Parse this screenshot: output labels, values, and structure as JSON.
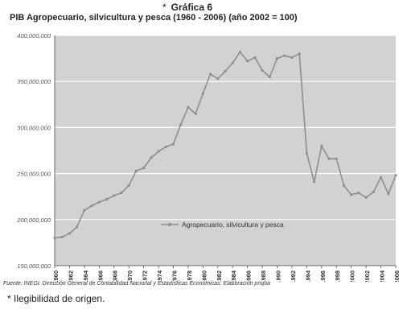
{
  "header": {
    "star": "*",
    "label": "Gráfica 6",
    "title": "PIB Agropecuario, silvicultura y pesca (1960 - 2006)  (año 2002 = 100)"
  },
  "footer": {
    "source": "Fuente: INEGI. Dirección General de Contabilidad Nacional y Estadísticas Económicas. Elaboración propia",
    "note": "* Ilegibilidad de origen."
  },
  "chart_data": {
    "type": "line",
    "x": [
      1960,
      1961,
      1962,
      1963,
      1964,
      1965,
      1966,
      1967,
      1968,
      1969,
      1970,
      1971,
      1972,
      1973,
      1974,
      1975,
      1976,
      1977,
      1978,
      1979,
      1980,
      1981,
      1982,
      1983,
      1984,
      1985,
      1986,
      1987,
      1988,
      1989,
      1990,
      1991,
      1992,
      1993,
      1994,
      1995,
      1996,
      1997,
      1998,
      1999,
      2000,
      2001,
      2002,
      2003,
      2004,
      2005,
      2006
    ],
    "series": [
      {
        "name": "Agropecuario, silvicultura y pesca",
        "values": [
          180000000,
          181000000,
          185000000,
          192000000,
          210000000,
          215000000,
          219000000,
          222000000,
          226000000,
          229000000,
          237000000,
          253000000,
          256000000,
          267000000,
          274000000,
          279000000,
          282000000,
          303000000,
          322000000,
          315000000,
          337000000,
          358000000,
          353000000,
          361000000,
          370000000,
          382000000,
          372000000,
          376000000,
          362000000,
          355000000,
          375000000,
          378000000,
          376000000,
          380000000,
          272000000,
          241000000,
          280000000,
          266000000,
          266000000,
          237000000,
          227000000,
          229000000,
          224000000,
          230000000,
          246000000,
          228000000,
          248000000
        ]
      }
    ],
    "xticks": [
      1960,
      1962,
      1964,
      1966,
      1968,
      1970,
      1972,
      1974,
      1976,
      1978,
      1980,
      1982,
      1984,
      1986,
      1988,
      1990,
      1992,
      1994,
      1996,
      1998,
      2000,
      2002,
      2004,
      2006
    ],
    "yticks": [
      150000000,
      200000000,
      250000000,
      300000000,
      350000000,
      400000000
    ],
    "ytick_labels": [
      "150,000,000",
      "200,000,000",
      "250,000,000",
      "300,000,000",
      "350,000,000",
      "400,000,000"
    ],
    "xlim": [
      1960,
      2006
    ],
    "ylim": [
      150000000,
      400000000
    ],
    "grid": true,
    "legend": "center",
    "colors": {
      "line": "#8e8e8e",
      "plot_bg": "#d2d2d2",
      "grid": "#ffffff",
      "axis": "#6a6a6a"
    }
  }
}
